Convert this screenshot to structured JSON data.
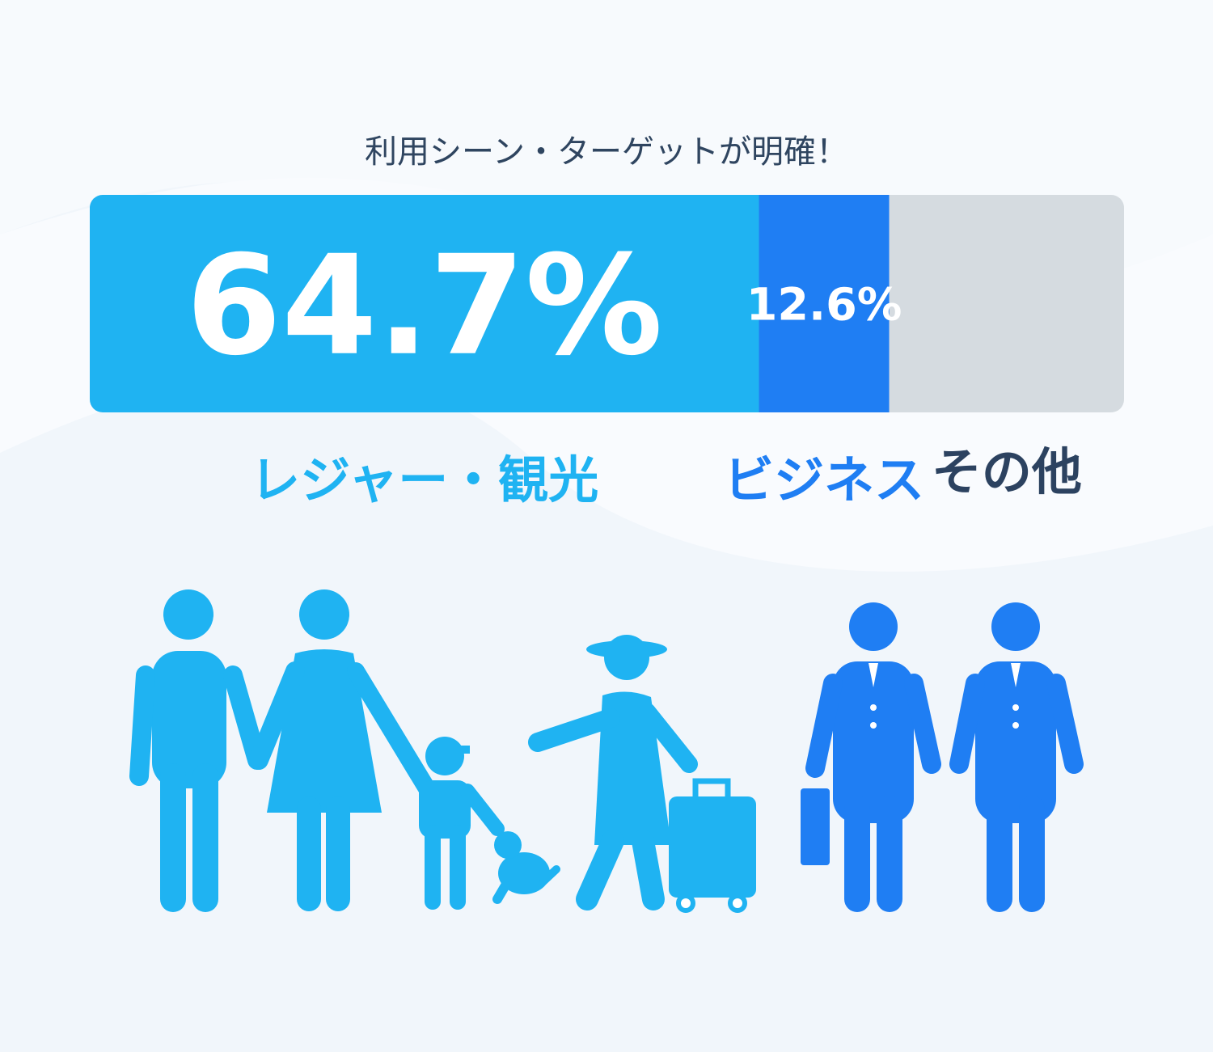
{
  "chart_data": {
    "type": "stacked-bar",
    "title": "利用シーン・ターゲットが明確！",
    "categories": [
      "レジャー・観光",
      "ビジネス",
      "その他"
    ],
    "values": [
      64.7,
      12.6,
      null
    ],
    "value_labels": [
      "64.7%",
      "12.6%",
      null
    ],
    "colors": [
      "#1fb3f2",
      "#1f7ef3",
      "#d5dbe0"
    ],
    "xlim": [
      0,
      100
    ]
  }
}
